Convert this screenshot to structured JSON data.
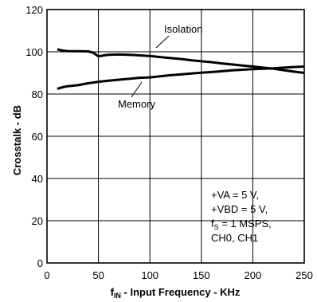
{
  "chart_data": {
    "type": "line",
    "title": "",
    "xlabel": {
      "main": "f",
      "sub": "IN",
      "rest": " - Input Frequency - KHz"
    },
    "ylabel": "Crosstalk - dB",
    "xlim": [
      0,
      250
    ],
    "ylim": [
      0,
      120
    ],
    "xticks": [
      0,
      50,
      100,
      150,
      200,
      250
    ],
    "yticks": [
      0,
      20,
      40,
      60,
      80,
      100,
      120
    ],
    "grid": true,
    "series": [
      {
        "name": "Isolation",
        "x": [
          10,
          15,
          20,
          30,
          40,
          45,
          50,
          55,
          60,
          70,
          80,
          90,
          100,
          110,
          120,
          130,
          140,
          150,
          160,
          170,
          180,
          190,
          200,
          210,
          220,
          230,
          240,
          250
        ],
        "y": [
          101.2,
          100.6,
          100.3,
          100.3,
          100.2,
          99.6,
          97.8,
          98.3,
          98.6,
          98.7,
          98.6,
          98.3,
          98.0,
          97.5,
          97.0,
          96.6,
          96.0,
          95.5,
          95.1,
          94.5,
          94.0,
          93.5,
          93.0,
          92.5,
          92.0,
          91.3,
          90.6,
          90.0
        ]
      },
      {
        "name": "Memory",
        "x": [
          10,
          15,
          20,
          30,
          40,
          50,
          60,
          70,
          80,
          90,
          100,
          110,
          120,
          130,
          140,
          150,
          160,
          170,
          180,
          190,
          200,
          210,
          220,
          230,
          240,
          250
        ],
        "y": [
          82.5,
          83.2,
          83.7,
          84.2,
          85.1,
          85.8,
          86.3,
          86.8,
          87.2,
          87.7,
          87.9,
          88.4,
          88.9,
          89.3,
          89.7,
          90.1,
          90.4,
          90.8,
          91.2,
          91.5,
          91.8,
          92.0,
          92.2,
          92.5,
          92.8,
          93.0
        ]
      }
    ],
    "annotations": {
      "isolation_label": "Isolation",
      "memory_label": "Memory",
      "conditions": {
        "line1": "+VA = 5 V,",
        "line2": "+VBD = 5 V,",
        "line3_main": "f",
        "line3_sub": "S",
        "line3_rest": " = 1 MSPS,",
        "line4": "CH0, CH1"
      }
    }
  }
}
